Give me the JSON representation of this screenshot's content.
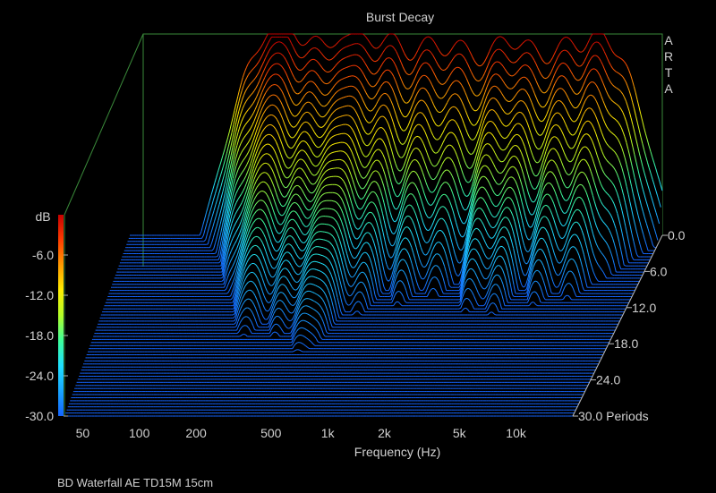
{
  "chart_data": {
    "type": "waterfall",
    "title": "Burst Decay",
    "xlabel": "Frequency (Hz)",
    "x_scale": "log",
    "x_ticks": [
      "50",
      "100",
      "200",
      "500",
      "1k",
      "2k",
      "5k",
      "10k"
    ],
    "x_tick_values": [
      50,
      100,
      200,
      500,
      1000,
      2000,
      5000,
      10000
    ],
    "xlim": [
      40,
      20000
    ],
    "zlabel": "dB",
    "z_ticks": [
      "-6.0",
      "-12.0",
      "-18.0",
      "-24.0",
      "-30.0"
    ],
    "z_tick_values": [
      -6,
      -12,
      -18,
      -24,
      -30
    ],
    "zlim": [
      -30,
      0
    ],
    "depth_label": "Periods",
    "depth_ticks": [
      "0.0",
      "6.0",
      "12.0",
      "18.0",
      "24.0",
      "30.0 Periods"
    ],
    "depth_tick_values": [
      0,
      6,
      12,
      18,
      24,
      30
    ],
    "depth_lim": [
      0,
      30
    ],
    "peaks": [
      {
        "freq": 160,
        "level": -8,
        "decay_periods": 10
      },
      {
        "freq": 210,
        "level": -5,
        "decay_periods": 12
      },
      {
        "freq": 250,
        "level": -4,
        "decay_periods": 14
      },
      {
        "freq": 350,
        "level": -6,
        "decay_periods": 16
      },
      {
        "freq": 480,
        "level": -8,
        "decay_periods": 19
      },
      {
        "freq": 600,
        "level": -6,
        "decay_periods": 16
      },
      {
        "freq": 850,
        "level": -5,
        "decay_periods": 12
      },
      {
        "freq": 1300,
        "level": -6,
        "decay_periods": 11
      },
      {
        "freq": 1900,
        "level": -7,
        "decay_periods": 10
      },
      {
        "freq": 3000,
        "level": -6,
        "decay_periods": 12
      },
      {
        "freq": 4200,
        "level": -7,
        "decay_periods": 13
      },
      {
        "freq": 6500,
        "level": -6,
        "decay_periods": 11
      },
      {
        "freq": 9500,
        "level": -3,
        "decay_periods": 9
      },
      {
        "freq": 13000,
        "level": -8,
        "decay_periods": 7
      }
    ],
    "colormap": [
      "#1464ff",
      "#19a6ff",
      "#1fe0ff",
      "#3cff9a",
      "#b4ff28",
      "#ffee00",
      "#ff9a00",
      "#ff3c00",
      "#c80000"
    ],
    "grid": false
  },
  "logo": [
    "A",
    "R",
    "T",
    "A"
  ],
  "caption": "BD Waterfall AE TD15M 15cm"
}
